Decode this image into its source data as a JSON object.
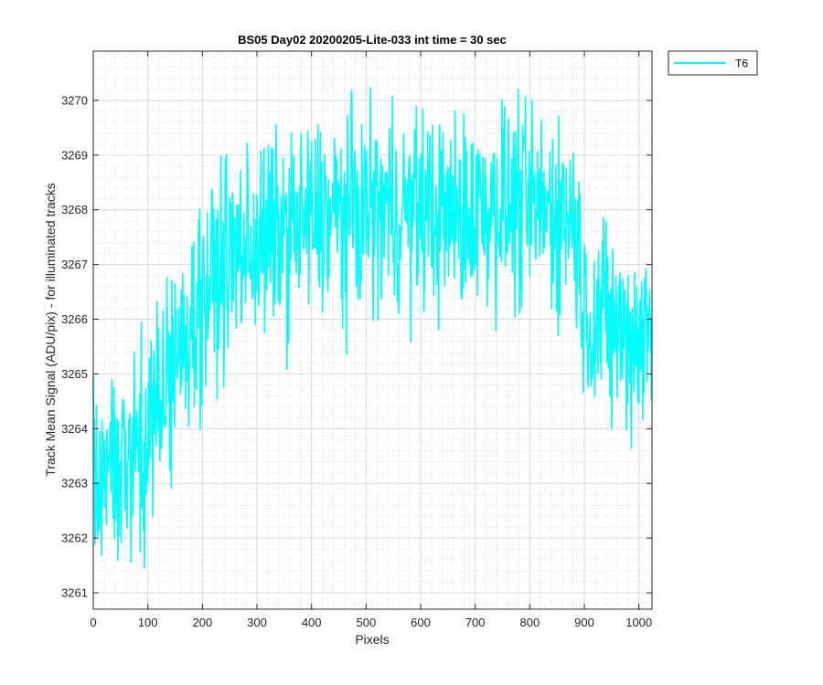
{
  "chart_data": {
    "type": "line",
    "title": "BS05 Day02 20200205-Lite-033 int time = 30 sec",
    "xlabel": "Pixels",
    "ylabel": "Track Mean Signal (ADU/pix) - for illuminated tracks",
    "xlim": [
      0,
      1024
    ],
    "ylim": [
      3260.7,
      3270.9
    ],
    "xticks": [
      0,
      100,
      200,
      300,
      400,
      500,
      600,
      700,
      800,
      900,
      1000
    ],
    "yticks": [
      3261,
      3262,
      3263,
      3264,
      3265,
      3266,
      3267,
      3268,
      3269,
      3270
    ],
    "grid": true,
    "minor_grid": true,
    "legend_position": "outside-top-right",
    "series": [
      {
        "name": "T6",
        "color": "#00FFFF",
        "x": [
          0,
          25,
          50,
          75,
          100,
          125,
          150,
          175,
          200,
          225,
          250,
          275,
          300,
          325,
          350,
          375,
          400,
          425,
          450,
          475,
          500,
          525,
          550,
          575,
          600,
          625,
          650,
          675,
          700,
          725,
          750,
          775,
          800,
          825,
          850,
          875,
          885,
          900,
          925,
          950,
          975,
          1000,
          1023
        ],
        "y": [
          3262.9,
          3263.2,
          3263.5,
          3263.7,
          3264.0,
          3264.5,
          3265.2,
          3265.9,
          3266.4,
          3266.8,
          3267.1,
          3267.3,
          3267.4,
          3267.5,
          3267.6,
          3267.7,
          3267.8,
          3267.85,
          3267.9,
          3267.95,
          3268.0,
          3268.0,
          3268.0,
          3268.0,
          3268.0,
          3267.95,
          3267.9,
          3267.9,
          3268.0,
          3268.1,
          3268.1,
          3268.05,
          3268.0,
          3268.0,
          3268.0,
          3267.9,
          3267.7,
          3266.2,
          3266.0,
          3265.8,
          3265.7,
          3265.7,
          3265.8
        ],
        "noise_amplitude": 0.9,
        "samples": 1024
      }
    ]
  }
}
